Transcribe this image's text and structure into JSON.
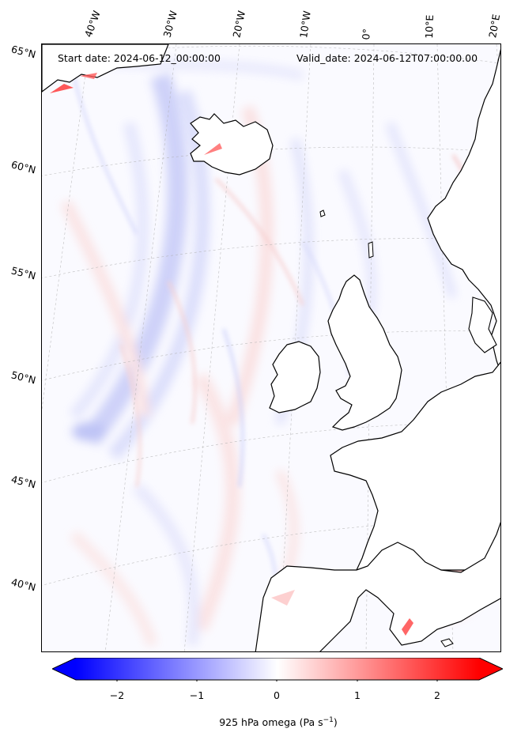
{
  "header": {
    "start": "Start date: 2024-06-12_00:00:00",
    "valid": "Valid_date: 2024-06-12T07:00:00.00"
  },
  "lon_labels": [
    "40°W",
    "30°W",
    "20°W",
    "10°W",
    "0°",
    "10°E",
    "20°E"
  ],
  "lat_labels": [
    "65°N",
    "60°N",
    "55°N",
    "50°N",
    "45°N",
    "40°N"
  ],
  "colorbar": {
    "ticks": [
      "−2",
      "−1",
      "0",
      "1",
      "2"
    ],
    "label_main": "925 hPa omega (Pa s",
    "label_exp": "−1",
    "label_close": ")",
    "min_color": "#0000ff",
    "mid_color": "#ffffff",
    "max_color": "#ff0000"
  },
  "colors": {
    "coastline": "#000000",
    "gridline": "#b0b0b0",
    "land": "#ffffff"
  }
}
